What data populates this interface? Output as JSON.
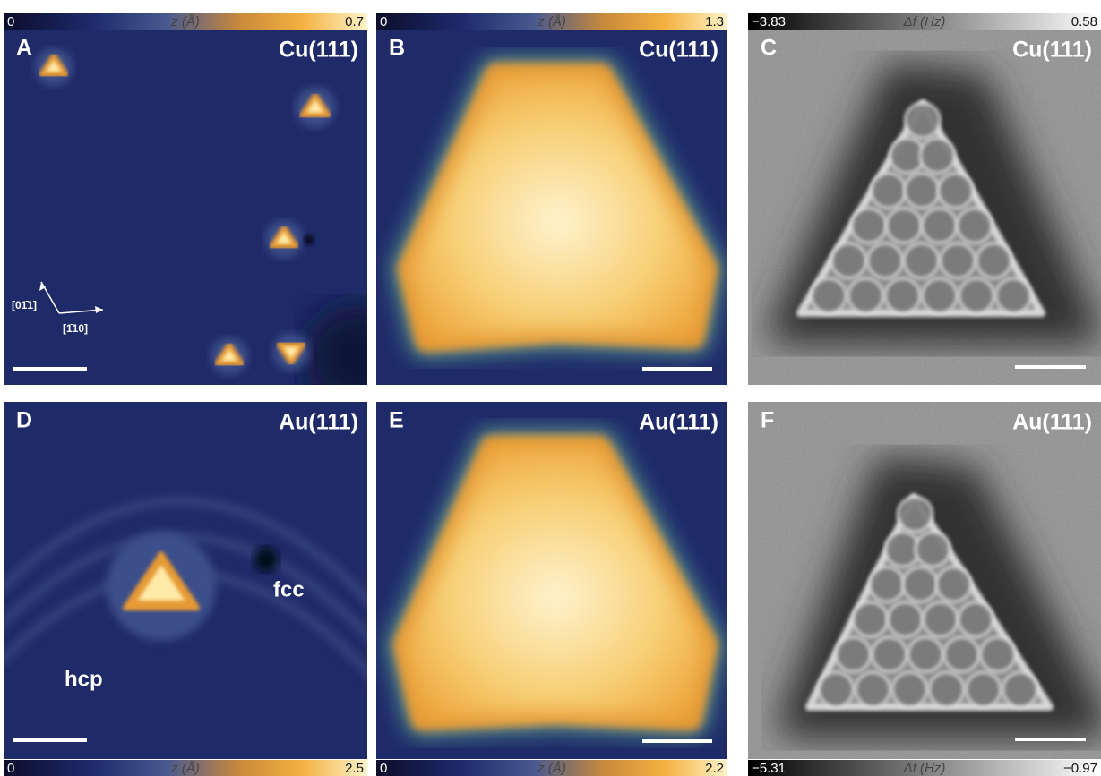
{
  "panels": [
    {
      "label": "A",
      "substrate": "Cu(111)",
      "colorbar": {
        "min": "0",
        "quantity": "z (Å)",
        "max": "0.7"
      },
      "annotations": [
        "[01̄1]",
        "[1̄10]"
      ]
    },
    {
      "label": "B",
      "substrate": "Cu(111)",
      "colorbar": {
        "min": "0",
        "quantity": "z (Å)",
        "max": "1.3"
      }
    },
    {
      "label": "C",
      "substrate": "Cu(111)",
      "colorbar": {
        "min": "−3.83",
        "quantity": "Δf (Hz)",
        "max": "0.58"
      }
    },
    {
      "label": "D",
      "substrate": "Au(111)",
      "colorbar": {
        "min": "0",
        "quantity": "z (Å)",
        "max": "2.5"
      },
      "annotations": [
        "fcc",
        "hcp"
      ]
    },
    {
      "label": "E",
      "substrate": "Au(111)",
      "colorbar": {
        "min": "0",
        "quantity": "z (Å)",
        "max": "2.2"
      }
    },
    {
      "label": "F",
      "substrate": "Au(111)",
      "colorbar": {
        "min": "−5.31",
        "quantity": "Δf (Hz)",
        "max": "−0.97"
      }
    }
  ]
}
